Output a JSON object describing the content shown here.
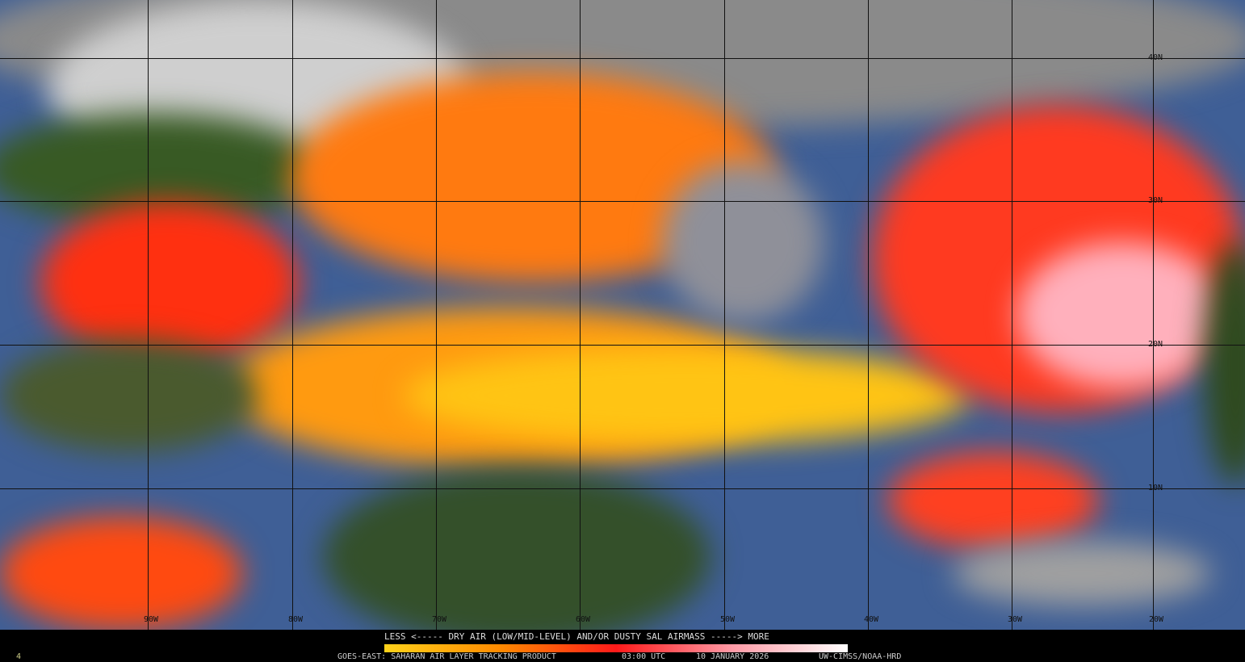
{
  "legend": {
    "title": "LESS <----- DRY AIR (LOW/MID-LEVEL) AND/OR DUSTY SAL AIRMASS -----> MORE",
    "colors": [
      "#ffd21a",
      "#ff8a00",
      "#ff1a1a",
      "#ff9aa6",
      "#ffffff"
    ]
  },
  "footer": {
    "product": "GOES-EAST: SAHARAN AIR LAYER TRACKING PRODUCT",
    "time": "03:00 UTC",
    "date": "10 JANUARY 2026",
    "credit": "UW-CIMSS/NOAA-HRD",
    "corner": "4"
  },
  "grid": {
    "longitudes": [
      "90W",
      "80W",
      "70W",
      "60W",
      "50W",
      "40W",
      "30W",
      "20W"
    ],
    "latitudes": [
      "40N",
      "30N",
      "20N",
      "10N"
    ]
  },
  "colors": {
    "ocean": "#3f5f96",
    "land": "#2f4a1e",
    "cloud": "#b8b8b8",
    "dry_air": "#ff6a00"
  }
}
